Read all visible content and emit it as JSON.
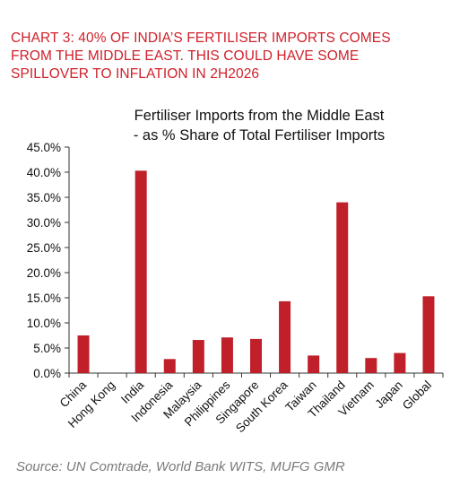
{
  "headline": [
    "CHART 3: 40% OF INDIA’S FERTILISER IMPORTS COMES",
    "FROM THE MIDDLE EAST. THIS COULD HAVE SOME",
    "SPILLOVER TO INFLATION IN 2H2026"
  ],
  "source": "Source: UN Comtrade, World Bank WITS, MUFG GMR",
  "colors": {
    "bar": "#c0202a",
    "headline": "#d0202a"
  },
  "chart_data": {
    "type": "bar",
    "title": [
      "Fertiliser Imports from the Middle East",
      "- as % Share of Total Fertiliser Imports"
    ],
    "categories": [
      "China",
      "Hong Kong",
      "India",
      "Indonesia",
      "Malaysia",
      "Philippines",
      "Singapore",
      "South Korea",
      "Taiwan",
      "Thailand",
      "Vietnam",
      "Japan",
      "Global"
    ],
    "values": [
      7.5,
      0,
      40.3,
      2.8,
      6.6,
      7.1,
      6.8,
      14.3,
      3.5,
      34.0,
      3.0,
      4.0,
      15.3
    ],
    "ylim": [
      0,
      45
    ],
    "yticks": [
      "0.0%",
      "5.0%",
      "10.0%",
      "15.0%",
      "20.0%",
      "25.0%",
      "30.0%",
      "35.0%",
      "40.0%",
      "45.0%"
    ],
    "xlabel": "",
    "ylabel": "",
    "grid": false,
    "legend": "none"
  }
}
